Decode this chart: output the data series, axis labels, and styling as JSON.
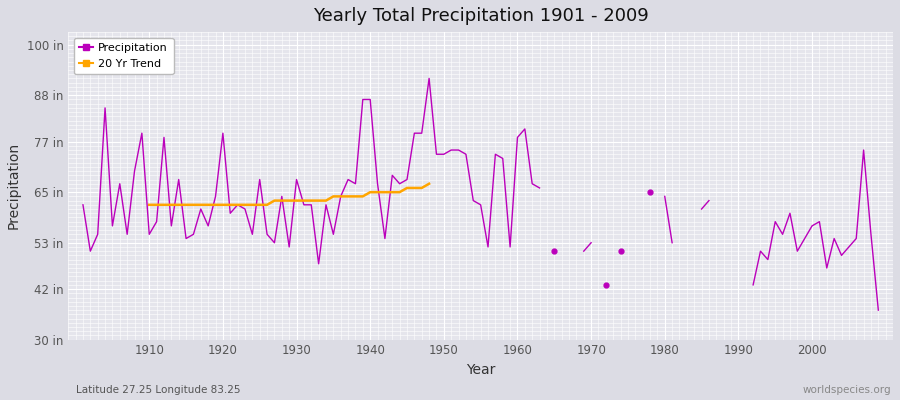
{
  "title": "Yearly Total Precipitation 1901 - 2009",
  "xlabel": "Year",
  "ylabel": "Precipitation",
  "subtitle_left": "Latitude 27.25 Longitude 83.25",
  "subtitle_right": "worldspecies.org",
  "legend_precip": "Precipitation",
  "legend_trend": "20 Yr Trend",
  "ylim": [
    30,
    103
  ],
  "yticks": [
    30,
    42,
    53,
    65,
    77,
    88,
    100
  ],
  "ytick_labels": [
    "30 in",
    "42 in",
    "53 in",
    "65 in",
    "77 in",
    "88 in",
    "100 in"
  ],
  "xlim": [
    1899,
    2011
  ],
  "xticks": [
    1910,
    1920,
    1930,
    1940,
    1950,
    1960,
    1970,
    1980,
    1990,
    2000
  ],
  "fig_bg_color": "#dcdce4",
  "plot_bg_color": "#e5e5ec",
  "precip_color": "#bb00bb",
  "trend_color": "#ffa500",
  "grid_color": "#ffffff",
  "years": [
    1901,
    1902,
    1903,
    1904,
    1905,
    1906,
    1907,
    1908,
    1909,
    1910,
    1911,
    1912,
    1913,
    1914,
    1915,
    1916,
    1917,
    1918,
    1919,
    1920,
    1921,
    1922,
    1923,
    1924,
    1925,
    1926,
    1927,
    1928,
    1929,
    1930,
    1931,
    1932,
    1933,
    1934,
    1935,
    1936,
    1937,
    1938,
    1939,
    1940,
    1941,
    1942,
    1943,
    1944,
    1945,
    1946,
    1947,
    1948,
    1949,
    1950,
    1951,
    1952,
    1953,
    1954,
    1955,
    1956,
    1957,
    1958,
    1959,
    1960,
    1961,
    1962,
    1963,
    1964,
    1965,
    1966,
    1967,
    1968,
    1969,
    1970,
    1971,
    1972,
    1973,
    1974,
    1975,
    1976,
    1977,
    1978,
    1979,
    1980,
    1981,
    1982,
    1983,
    1984,
    1985,
    1986,
    1987,
    1988,
    1989,
    1990,
    1991,
    1992,
    1993,
    1994,
    1995,
    1996,
    1997,
    1998,
    1999,
    2000,
    2001,
    2002,
    2003,
    2004,
    2005,
    2006,
    2007,
    2008,
    2009
  ],
  "precip": [
    62,
    51,
    55,
    85,
    57,
    67,
    55,
    70,
    79,
    55,
    58,
    78,
    57,
    68,
    54,
    55,
    61,
    57,
    64,
    79,
    60,
    62,
    61,
    55,
    68,
    55,
    53,
    64,
    52,
    68,
    62,
    62,
    48,
    62,
    55,
    64,
    68,
    67,
    87,
    87,
    67,
    54,
    69,
    67,
    68,
    79,
    79,
    92,
    74,
    74,
    75,
    75,
    74,
    63,
    62,
    52,
    74,
    73,
    52,
    78,
    80,
    67,
    66,
    null,
    51,
    null,
    null,
    null,
    51,
    53,
    null,
    43,
    null,
    51,
    null,
    null,
    null,
    65,
    null,
    64,
    53,
    null,
    null,
    null,
    61,
    63,
    null,
    null,
    null,
    null,
    null,
    43,
    51,
    49,
    58,
    55,
    60,
    51,
    54,
    57,
    58,
    47,
    54,
    50,
    52,
    54,
    75,
    55,
    37
  ],
  "trend_years": [
    1910,
    1911,
    1912,
    1913,
    1914,
    1915,
    1916,
    1917,
    1918,
    1919,
    1920,
    1921,
    1922,
    1923,
    1924,
    1925,
    1926,
    1927,
    1928,
    1929,
    1930,
    1931,
    1932,
    1933,
    1934,
    1935,
    1936,
    1937,
    1938,
    1939,
    1940,
    1941,
    1942,
    1943,
    1944,
    1945,
    1946,
    1947,
    1948
  ],
  "trend": [
    62,
    62,
    62,
    62,
    62,
    62,
    62,
    62,
    62,
    62,
    62,
    62,
    62,
    62,
    62,
    62,
    62,
    63,
    63,
    63,
    63,
    63,
    63,
    63,
    63,
    64,
    64,
    64,
    64,
    64,
    65,
    65,
    65,
    65,
    65,
    66,
    66,
    66,
    67
  ]
}
